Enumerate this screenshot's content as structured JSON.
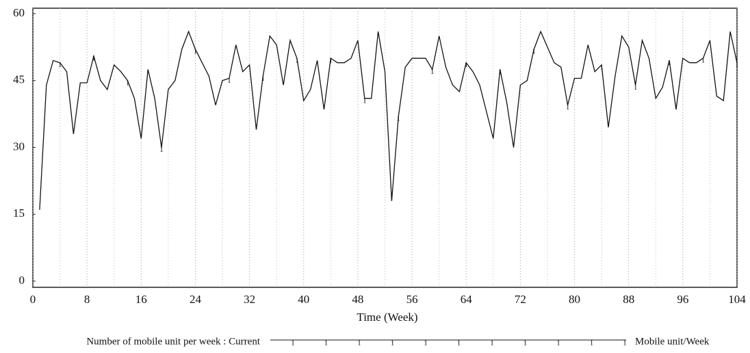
{
  "chart_data": {
    "type": "line",
    "xlabel": "Time (Week)",
    "xlim": [
      0,
      104
    ],
    "ylim": [
      0,
      60
    ],
    "xticks": [
      0,
      8,
      16,
      24,
      32,
      40,
      48,
      56,
      64,
      72,
      80,
      88,
      96,
      104
    ],
    "yticks": [
      0,
      15,
      30,
      45,
      60
    ],
    "x_minor_grid": [
      4,
      12,
      20,
      28,
      36,
      44,
      52,
      60,
      68,
      76,
      84,
      92,
      100
    ],
    "grid": true,
    "units": "Mobile unit/Week",
    "x": [
      1,
      2,
      3,
      4,
      5,
      6,
      7,
      8,
      9,
      10,
      11,
      12,
      13,
      14,
      15,
      16,
      17,
      18,
      19,
      20,
      21,
      22,
      23,
      24,
      25,
      26,
      27,
      28,
      29,
      30,
      31,
      32,
      33,
      34,
      35,
      36,
      37,
      38,
      39,
      40,
      41,
      42,
      43,
      44,
      45,
      46,
      47,
      48,
      49,
      50,
      51,
      52,
      53,
      54,
      55,
      56,
      57,
      58,
      59,
      60,
      61,
      62,
      63,
      64,
      65,
      66,
      67,
      68,
      69,
      70,
      71,
      72,
      73,
      74,
      75,
      76,
      77,
      78,
      79,
      80,
      81,
      82,
      83,
      84,
      85,
      86,
      87,
      88,
      89,
      90,
      91,
      92,
      93,
      94,
      95,
      96,
      97,
      98,
      99,
      100,
      101,
      102,
      103,
      104
    ],
    "series": [
      {
        "name": "Number of mobile unit per week : Current",
        "color": "#111111",
        "marker_label": "1",
        "values": [
          16,
          44,
          49.5,
          49,
          47,
          33,
          44.5,
          44.5,
          50.5,
          45,
          43,
          48.5,
          47,
          45,
          41,
          32,
          47.5,
          41,
          30,
          43,
          45,
          52,
          56,
          52,
          49,
          46,
          39.5,
          45,
          45.5,
          53,
          47,
          48.5,
          34,
          46,
          55,
          53,
          44,
          54,
          50,
          40.5,
          43,
          49.5,
          38.5,
          50,
          49,
          49,
          50,
          54,
          41,
          41,
          56,
          47,
          18,
          37,
          48,
          50,
          50,
          50,
          47.5,
          55,
          48,
          44,
          42.5,
          49,
          47,
          44,
          38,
          32,
          47.5,
          40,
          30,
          44,
          45,
          52,
          56,
          52.5,
          49,
          48,
          39.5,
          45.5,
          45.5,
          53,
          47,
          48.5,
          34.5,
          46,
          55,
          52.5,
          44,
          54,
          50,
          41,
          43.5,
          49.5,
          38.5,
          50,
          49,
          49,
          50,
          54,
          41.5,
          40.5,
          56,
          49
        ]
      }
    ]
  }
}
